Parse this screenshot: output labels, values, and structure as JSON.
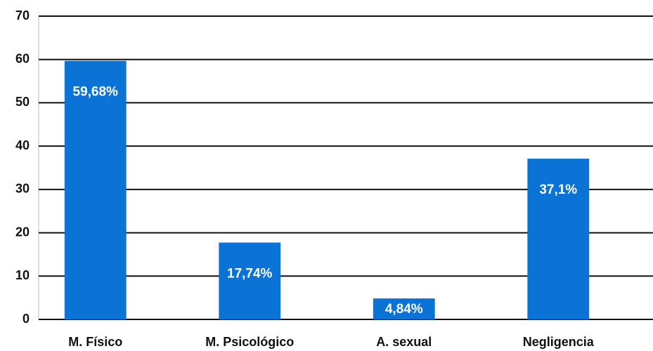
{
  "chart_data": {
    "type": "bar",
    "categories": [
      "M. Físico",
      "M. Psicológico",
      "A. sexual",
      "Negligencia"
    ],
    "values": [
      59.68,
      17.74,
      4.84,
      37.1
    ],
    "value_labels": [
      "59,68%",
      "17,74%",
      "4,84%",
      "37,1%"
    ],
    "color": "#0b72d6",
    "ylim": [
      0,
      70
    ],
    "yticks": [
      0,
      10,
      20,
      30,
      40,
      50,
      60,
      70
    ],
    "grid": true
  }
}
